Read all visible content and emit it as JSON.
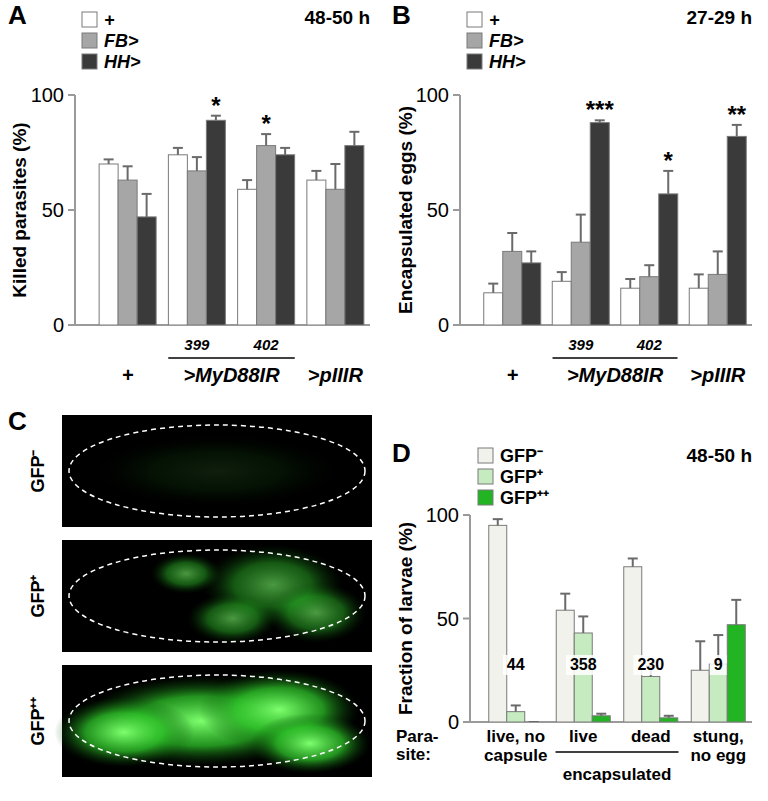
{
  "chart_data": [
    {
      "type": "bar",
      "title": "A",
      "subtitle": "48-50 h",
      "y_label": "Killed parasites (%)",
      "categories": [
        "+",
        "399",
        "402",
        ">pIIIR"
      ],
      "category_groups": [
        {
          "label": ">MyD88IR",
          "categories": [
            1,
            2
          ]
        }
      ],
      "series": [
        {
          "name": "+",
          "color": "#ffffff",
          "values": [
            70,
            74,
            59,
            63
          ],
          "errors": [
            2,
            3,
            4,
            4
          ]
        },
        {
          "name": "FB>",
          "color": "#a6a6a6",
          "values": [
            63,
            67,
            78,
            59
          ],
          "errors": [
            6,
            6,
            5,
            11
          ]
        },
        {
          "name": "HH>",
          "color": "#3a3a3a",
          "values": [
            47,
            89,
            74,
            78
          ],
          "errors": [
            10,
            2,
            3,
            6
          ]
        }
      ],
      "ylim": [
        0,
        100
      ],
      "yticks": [
        0,
        50,
        100
      ],
      "legend": "top-left",
      "annotations": [
        {
          "text": "*",
          "category": 1,
          "series": 2
        },
        {
          "text": "*",
          "category": 2,
          "series": 1
        }
      ]
    },
    {
      "type": "bar",
      "title": "B",
      "subtitle": "27-29 h",
      "y_label": "Encapsulated eggs (%)",
      "categories": [
        "+",
        "399",
        "402",
        ">pIIIR"
      ],
      "category_groups": [
        {
          "label": ">MyD88IR",
          "categories": [
            1,
            2
          ]
        }
      ],
      "series": [
        {
          "name": "+",
          "color": "#ffffff",
          "values": [
            14,
            19,
            16,
            16
          ],
          "errors": [
            4,
            4,
            4,
            6
          ]
        },
        {
          "name": "FB>",
          "color": "#a6a6a6",
          "values": [
            32,
            36,
            21,
            22
          ],
          "errors": [
            8,
            12,
            5,
            10
          ]
        },
        {
          "name": "HH>",
          "color": "#3a3a3a",
          "values": [
            27,
            88,
            57,
            82
          ],
          "errors": [
            5,
            1,
            10,
            5
          ]
        }
      ],
      "ylim": [
        0,
        100
      ],
      "yticks": [
        0,
        50,
        100
      ],
      "legend": "top-left",
      "annotations": [
        {
          "text": "***",
          "category": 1,
          "series": 2
        },
        {
          "text": "*",
          "category": 2,
          "series": 2
        },
        {
          "text": "**",
          "category": 3,
          "series": 2
        }
      ]
    },
    {
      "type": "bar",
      "title": "D",
      "subtitle": "48-50 h",
      "y_label": "Fraction of larvae (%)",
      "x_label": [
        "Para-",
        "site:"
      ],
      "categories": [
        "live, no capsule",
        "live",
        "dead",
        "stung, no egg"
      ],
      "category_groups": [
        {
          "label": "encapsulated",
          "categories": [
            1,
            2
          ]
        }
      ],
      "series": [
        {
          "name": "GFP⁻",
          "color": "#f2f2ec",
          "values": [
            95,
            54,
            75,
            25
          ],
          "errors": [
            3,
            8,
            4,
            14
          ]
        },
        {
          "name": "GFP⁺",
          "color": "#c6ebc0",
          "values": [
            5,
            43,
            22,
            28
          ],
          "errors": [
            3,
            8,
            5,
            14
          ]
        },
        {
          "name": "GFP⁺⁺",
          "color": "#22b422",
          "values": [
            0,
            3,
            2,
            47
          ],
          "errors": [
            0,
            1,
            1,
            12
          ]
        }
      ],
      "ylim": [
        0,
        100
      ],
      "yticks": [
        0,
        50,
        100
      ],
      "legend": "top-left",
      "annotations": [
        {
          "text": "44",
          "category": 0
        },
        {
          "text": "358",
          "category": 1
        },
        {
          "text": "230",
          "category": 2
        },
        {
          "text": "9",
          "category": 3
        }
      ]
    }
  ],
  "images": {
    "title": "C",
    "labels": [
      "GFP⁻",
      "GFP⁺",
      "GFP⁺⁺"
    ]
  }
}
